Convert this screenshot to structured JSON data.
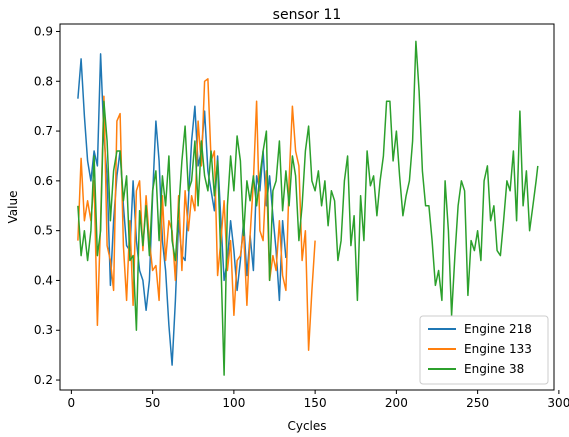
{
  "chart_data": {
    "type": "line",
    "title": "sensor 11",
    "xlabel": "Cycles",
    "ylabel": "Value",
    "xlim": [
      -7,
      297
    ],
    "ylim": [
      0.18,
      0.915
    ],
    "xticks": [
      0,
      50,
      100,
      150,
      200,
      250,
      300
    ],
    "yticks": [
      0.2,
      0.3,
      0.4,
      0.5,
      0.6,
      0.7,
      0.8,
      0.9
    ],
    "grid": false,
    "legend_position": "lower-right",
    "series": [
      {
        "name": "Engine 218",
        "color": "#1f77b4",
        "x": [
          4,
          6,
          8,
          10,
          12,
          14,
          16,
          18,
          20,
          22,
          24,
          26,
          28,
          30,
          32,
          34,
          36,
          38,
          40,
          42,
          44,
          46,
          48,
          50,
          52,
          54,
          56,
          58,
          60,
          62,
          64,
          66,
          68,
          70,
          72,
          74,
          76,
          78,
          80,
          82,
          84,
          86,
          88,
          90,
          92,
          94,
          96,
          98,
          100,
          102,
          104,
          106,
          108,
          110,
          112,
          114,
          116,
          118,
          120,
          122,
          124,
          126,
          128,
          130,
          132
        ],
        "values": [
          0.765,
          0.845,
          0.73,
          0.64,
          0.6,
          0.66,
          0.63,
          0.855,
          0.69,
          0.61,
          0.39,
          0.52,
          0.61,
          0.66,
          0.55,
          0.47,
          0.46,
          0.6,
          0.48,
          0.42,
          0.4,
          0.34,
          0.4,
          0.57,
          0.72,
          0.64,
          0.48,
          0.42,
          0.31,
          0.23,
          0.36,
          0.52,
          0.45,
          0.44,
          0.56,
          0.68,
          0.75,
          0.63,
          0.66,
          0.74,
          0.62,
          0.58,
          0.54,
          0.65,
          0.52,
          0.4,
          0.44,
          0.52,
          0.46,
          0.38,
          0.44,
          0.52,
          0.41,
          0.49,
          0.42,
          0.61,
          0.58,
          0.66,
          0.55,
          0.61,
          0.53,
          0.46,
          0.36,
          0.52,
          0.445
        ]
      },
      {
        "name": "Engine 133",
        "color": "#ff7f0e",
        "x": [
          4,
          6,
          8,
          10,
          12,
          14,
          16,
          18,
          20,
          22,
          24,
          26,
          28,
          30,
          32,
          34,
          36,
          38,
          40,
          42,
          44,
          46,
          48,
          50,
          52,
          54,
          56,
          58,
          60,
          62,
          64,
          66,
          68,
          70,
          72,
          74,
          76,
          78,
          80,
          82,
          84,
          86,
          88,
          90,
          92,
          94,
          96,
          98,
          100,
          102,
          104,
          106,
          108,
          110,
          112,
          114,
          116,
          118,
          120,
          122,
          124,
          126,
          128,
          130,
          132,
          134,
          136,
          138,
          140,
          142,
          144,
          146,
          148,
          150
        ],
        "values": [
          0.48,
          0.645,
          0.52,
          0.56,
          0.52,
          0.6,
          0.31,
          0.52,
          0.77,
          0.47,
          0.44,
          0.38,
          0.72,
          0.735,
          0.47,
          0.36,
          0.52,
          0.35,
          0.58,
          0.6,
          0.46,
          0.57,
          0.48,
          0.42,
          0.43,
          0.36,
          0.57,
          0.44,
          0.52,
          0.5,
          0.4,
          0.57,
          0.42,
          0.58,
          0.5,
          0.57,
          0.54,
          0.72,
          0.63,
          0.8,
          0.805,
          0.64,
          0.66,
          0.41,
          0.48,
          0.56,
          0.42,
          0.48,
          0.33,
          0.44,
          0.45,
          0.5,
          0.35,
          0.49,
          0.6,
          0.76,
          0.5,
          0.48,
          0.62,
          0.4,
          0.45,
          0.42,
          0.52,
          0.41,
          0.38,
          0.6,
          0.75,
          0.66,
          0.63,
          0.44,
          0.5,
          0.26,
          0.38,
          0.48
        ]
      },
      {
        "name": "Engine 38",
        "color": "#2ca02c",
        "x": [
          4,
          6,
          8,
          10,
          12,
          14,
          16,
          18,
          20,
          22,
          24,
          26,
          28,
          30,
          32,
          34,
          36,
          38,
          40,
          42,
          44,
          46,
          48,
          50,
          52,
          54,
          56,
          58,
          60,
          62,
          64,
          66,
          68,
          70,
          72,
          74,
          76,
          78,
          80,
          82,
          84,
          86,
          88,
          90,
          92,
          94,
          96,
          98,
          100,
          102,
          104,
          106,
          108,
          110,
          112,
          114,
          116,
          118,
          120,
          122,
          124,
          126,
          128,
          130,
          132,
          134,
          136,
          138,
          140,
          142,
          144,
          146,
          148,
          150,
          152,
          154,
          156,
          158,
          160,
          162,
          164,
          166,
          168,
          170,
          172,
          174,
          176,
          178,
          180,
          182,
          184,
          186,
          188,
          190,
          192,
          194,
          196,
          198,
          200,
          202,
          204,
          206,
          208,
          210,
          212,
          214,
          216,
          218,
          220,
          222,
          224,
          226,
          228,
          230,
          232,
          234,
          236,
          238,
          240,
          242,
          244,
          246,
          248,
          250,
          252,
          254,
          256,
          258,
          260,
          262,
          264,
          266,
          268,
          270,
          272,
          274,
          276,
          278,
          280,
          282,
          284,
          286,
          287
        ],
        "values": [
          0.55,
          0.45,
          0.5,
          0.44,
          0.5,
          0.65,
          0.45,
          0.5,
          0.76,
          0.68,
          0.52,
          0.62,
          0.66,
          0.66,
          0.56,
          0.61,
          0.44,
          0.45,
          0.3,
          0.54,
          0.47,
          0.55,
          0.45,
          0.58,
          0.62,
          0.48,
          0.61,
          0.55,
          0.65,
          0.48,
          0.44,
          0.54,
          0.64,
          0.71,
          0.58,
          0.6,
          0.68,
          0.55,
          0.68,
          0.61,
          0.58,
          0.66,
          0.57,
          0.64,
          0.44,
          0.21,
          0.55,
          0.65,
          0.58,
          0.69,
          0.64,
          0.49,
          0.6,
          0.56,
          0.61,
          0.55,
          0.61,
          0.66,
          0.7,
          0.4,
          0.58,
          0.6,
          0.68,
          0.54,
          0.62,
          0.55,
          0.65,
          0.61,
          0.48,
          0.55,
          0.66,
          0.71,
          0.6,
          0.58,
          0.62,
          0.55,
          0.6,
          0.51,
          0.58,
          0.56,
          0.44,
          0.48,
          0.6,
          0.65,
          0.47,
          0.53,
          0.36,
          0.57,
          0.48,
          0.66,
          0.59,
          0.61,
          0.53,
          0.6,
          0.65,
          0.76,
          0.76,
          0.64,
          0.7,
          0.61,
          0.53,
          0.57,
          0.6,
          0.68,
          0.88,
          0.78,
          0.62,
          0.55,
          0.55,
          0.48,
          0.39,
          0.42,
          0.36,
          0.6,
          0.5,
          0.33,
          0.45,
          0.55,
          0.6,
          0.58,
          0.37,
          0.48,
          0.46,
          0.5,
          0.44,
          0.6,
          0.63,
          0.52,
          0.55,
          0.46,
          0.45,
          0.52,
          0.6,
          0.58,
          0.66,
          0.52,
          0.74,
          0.55,
          0.62,
          0.5,
          0.55,
          0.6,
          0.63
        ]
      }
    ]
  }
}
